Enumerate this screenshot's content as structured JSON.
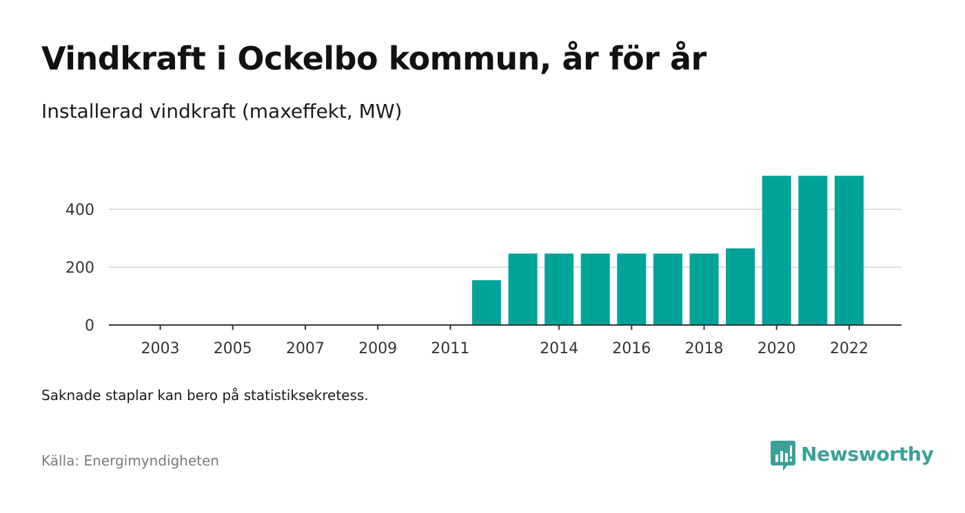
{
  "header": {
    "title": "Vindkraft i Ockelbo kommun, år för år",
    "subtitle": "Installerad vindkraft (maxeffekt, MW)"
  },
  "footer": {
    "note": "Saknade staplar kan bero på statistiksekretess.",
    "source": "Källa: Energimyndigheten",
    "brand": "Newsworthy",
    "brand_icon": "newsworthy-logo-icon"
  },
  "colors": {
    "bar": "#00a398",
    "grid": "#dddddd",
    "axis": "#333333",
    "brand": "#3aa199"
  },
  "chart_data": {
    "type": "bar",
    "categories": [
      "2003",
      "2004",
      "2005",
      "2006",
      "2007",
      "2008",
      "2009",
      "2010",
      "2011",
      "2012",
      "2013",
      "2014",
      "2015",
      "2016",
      "2017",
      "2018",
      "2019",
      "2020",
      "2021",
      "2022"
    ],
    "values": [
      0,
      0,
      0,
      0,
      0,
      0,
      0,
      0,
      0,
      155,
      247,
      247,
      247,
      247,
      247,
      247,
      265,
      516,
      516,
      516
    ],
    "x_tick_labels": [
      "2003",
      "2005",
      "2007",
      "2009",
      "2011",
      "2014",
      "2016",
      "2018",
      "2020",
      "2022"
    ],
    "y_ticks": [
      0,
      200,
      400
    ],
    "ylim": [
      0,
      520
    ],
    "xlabel": "",
    "ylabel": "",
    "grid": true,
    "legend": "none"
  }
}
